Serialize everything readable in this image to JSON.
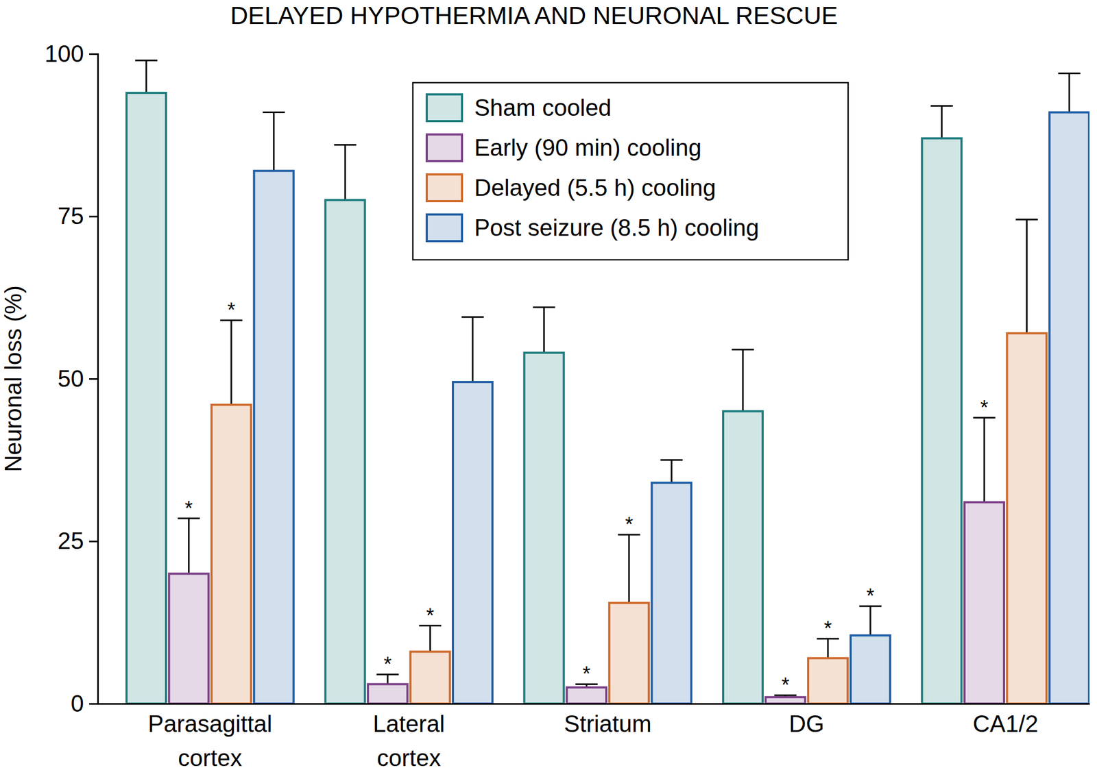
{
  "chart_data": {
    "type": "bar",
    "title": "DELAYED HYPOTHERMIA AND NEURONAL RESCUE",
    "y_label": "Neuronal loss (%)",
    "categories": [
      "Parasagittal cortex",
      "Lateral cortex",
      "Striatum",
      "DG",
      "CA1/2"
    ],
    "series": [
      {
        "name": "Sham cooled",
        "color": "#1f7d7e",
        "values": [
          94,
          77.5,
          54,
          45,
          87
        ],
        "errors": [
          5,
          8.5,
          7,
          9.5,
          5
        ],
        "annotations": [
          null,
          null,
          null,
          null,
          null
        ]
      },
      {
        "name": "Early (90 min) cooling",
        "color": "#7b3f87",
        "values": [
          20,
          3,
          2.5,
          1,
          31
        ],
        "errors": [
          8.5,
          1.5,
          0.5,
          0.3,
          13
        ],
        "annotations": [
          "*",
          "*",
          "*",
          "*",
          "*"
        ]
      },
      {
        "name": "Delayed (5.5 h) cooling",
        "color": "#cf6a2a",
        "values": [
          46,
          8,
          15.5,
          7,
          57
        ],
        "errors": [
          13,
          4,
          10.5,
          3,
          17.5
        ],
        "annotations": [
          "*",
          "*",
          "*",
          "*",
          null
        ]
      },
      {
        "name": "Post seizure (8.5 h) cooling",
        "color": "#1f5fa6",
        "values": [
          82,
          49.5,
          34,
          10.5,
          91
        ],
        "errors": [
          9,
          10,
          3.5,
          4.5,
          6
        ],
        "annotations": [
          null,
          null,
          null,
          "*",
          null
        ]
      }
    ],
    "ylim": [
      0,
      100
    ],
    "yticks": [
      0,
      25,
      50,
      75,
      100
    ],
    "grid": false,
    "legend": "top"
  }
}
